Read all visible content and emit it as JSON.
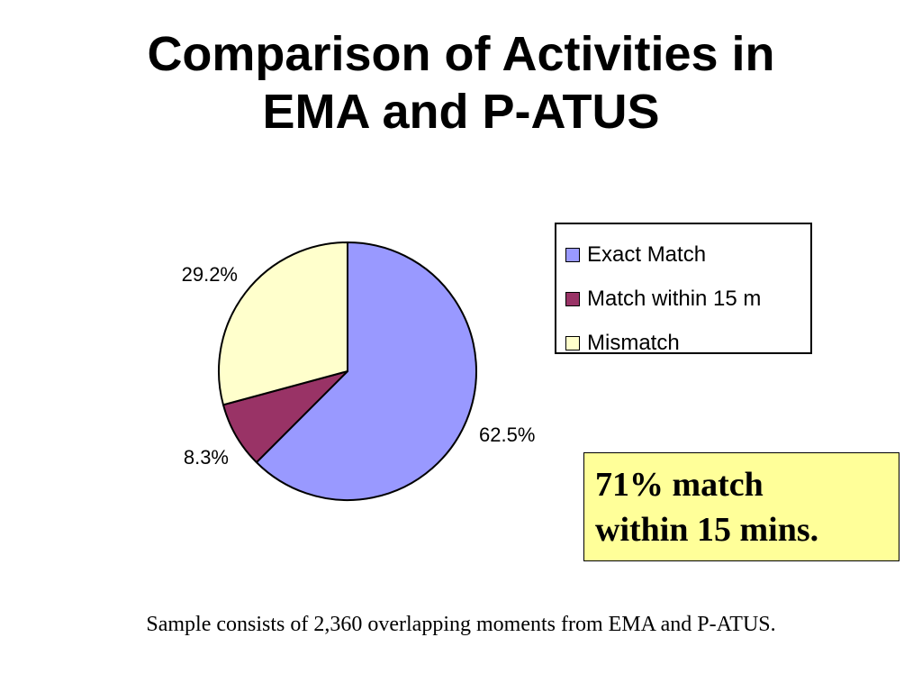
{
  "title": {
    "line1": "Comparison of Activities in",
    "line2": "EMA and P-ATUS"
  },
  "chart_data": {
    "type": "pie",
    "title": "",
    "categories": [
      "Exact Match",
      "Match within 15 m",
      "Mismatch"
    ],
    "values": [
      62.5,
      8.3,
      29.2
    ],
    "labels": [
      "62.5%",
      "8.3%",
      "29.2%"
    ],
    "colors": [
      "#9999ff",
      "#993366",
      "#ffffcc"
    ],
    "legend_position": "right",
    "start_angle_deg": 0,
    "direction": "clockwise"
  },
  "callout": {
    "line1": "71% match",
    "line2": "within 15 mins."
  },
  "footnote": "Sample consists of 2,360 overlapping moments from EMA and P-ATUS."
}
